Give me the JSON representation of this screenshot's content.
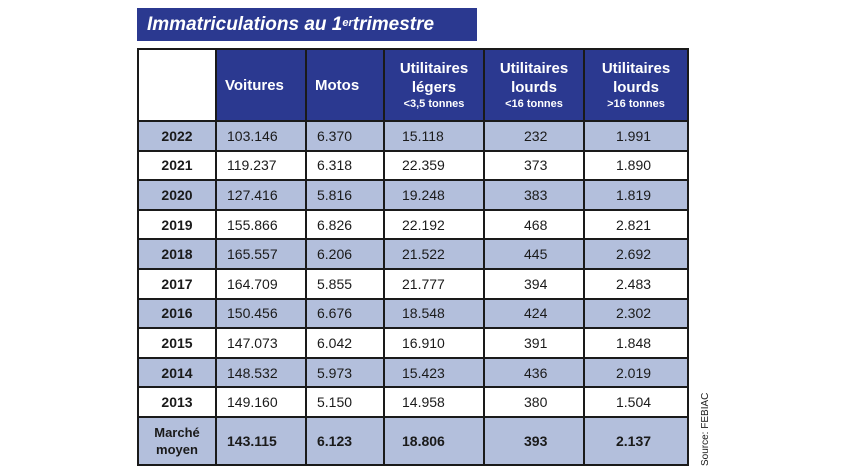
{
  "title": {
    "main": "Immatriculations au 1",
    "sup": "er",
    "rest": " trimestre"
  },
  "headers": {
    "voitures": "Voitures",
    "motos": "Motos",
    "ul_legers": {
      "line1": "Utilitaires",
      "line2": "légers",
      "sub": "<3,5 tonnes"
    },
    "ul_lourds_16": {
      "line1": "Utilitaires",
      "line2": "lourds",
      "sub": "<16 tonnes"
    },
    "ul_lourds_16plus": {
      "line1": "Utilitaires",
      "line2": "lourds",
      "sub": ">16 tonnes"
    }
  },
  "rows": [
    {
      "year": "2022",
      "voitures": "103.146",
      "motos": "6.370",
      "ul_legers": "15.118",
      "ul_lourds_16": "232",
      "ul_lourds_16plus": "1.991"
    },
    {
      "year": "2021",
      "voitures": "119.237",
      "motos": "6.318",
      "ul_legers": "22.359",
      "ul_lourds_16": "373",
      "ul_lourds_16plus": "1.890"
    },
    {
      "year": "2020",
      "voitures": "127.416",
      "motos": "5.816",
      "ul_legers": "19.248",
      "ul_lourds_16": "383",
      "ul_lourds_16plus": "1.819"
    },
    {
      "year": "2019",
      "voitures": "155.866",
      "motos": "6.826",
      "ul_legers": "22.192",
      "ul_lourds_16": "468",
      "ul_lourds_16plus": "2.821"
    },
    {
      "year": "2018",
      "voitures": "165.557",
      "motos": "6.206",
      "ul_legers": "21.522",
      "ul_lourds_16": "445",
      "ul_lourds_16plus": "2.692"
    },
    {
      "year": "2017",
      "voitures": "164.709",
      "motos": "5.855",
      "ul_legers": "21.777",
      "ul_lourds_16": "394",
      "ul_lourds_16plus": "2.483"
    },
    {
      "year": "2016",
      "voitures": "150.456",
      "motos": "6.676",
      "ul_legers": "18.548",
      "ul_lourds_16": "424",
      "ul_lourds_16plus": "2.302"
    },
    {
      "year": "2015",
      "voitures": "147.073",
      "motos": "6.042",
      "ul_legers": "16.910",
      "ul_lourds_16": "391",
      "ul_lourds_16plus": "1.848"
    },
    {
      "year": "2014",
      "voitures": "148.532",
      "motos": "5.973",
      "ul_legers": "15.423",
      "ul_lourds_16": "436",
      "ul_lourds_16plus": "2.019"
    },
    {
      "year": "2013",
      "voitures": "149.160",
      "motos": "5.150",
      "ul_legers": "14.958",
      "ul_lourds_16": "380",
      "ul_lourds_16plus": "1.504"
    }
  ],
  "average": {
    "label_line1": "Marché",
    "label_line2": "moyen",
    "voitures": "143.115",
    "motos": "6.123",
    "ul_legers": "18.806",
    "ul_lourds_16": "393",
    "ul_lourds_16plus": "2.137"
  },
  "source": "Source: FEBIAC",
  "colors": {
    "header": "#2b3990",
    "shade": "#b3bfdc",
    "border": "#1a1a1a"
  },
  "chart_data": {
    "type": "table",
    "title": "Immatriculations au 1er trimestre",
    "columns": [
      "",
      "Voitures",
      "Motos",
      "Utilitaires légers <3,5 tonnes",
      "Utilitaires lourds <16 tonnes",
      "Utilitaires lourds >16 tonnes"
    ],
    "series": [
      {
        "name": "Voitures",
        "values": [
          103146,
          119237,
          127416,
          155866,
          165557,
          164709,
          150456,
          147073,
          148532,
          149160
        ]
      },
      {
        "name": "Motos",
        "values": [
          6370,
          6318,
          5816,
          6826,
          6206,
          5855,
          6676,
          6042,
          5973,
          5150
        ]
      },
      {
        "name": "Utilitaires légers <3,5 tonnes",
        "values": [
          15118,
          22359,
          19248,
          22192,
          21522,
          21777,
          18548,
          16910,
          15423,
          14958
        ]
      },
      {
        "name": "Utilitaires lourds <16 tonnes",
        "values": [
          232,
          373,
          383,
          468,
          445,
          394,
          424,
          391,
          436,
          380
        ]
      },
      {
        "name": "Utilitaires lourds >16 tonnes",
        "values": [
          1991,
          1890,
          1819,
          2821,
          2692,
          2483,
          2302,
          1848,
          2019,
          1504
        ]
      }
    ],
    "categories": [
      "2022",
      "2021",
      "2020",
      "2019",
      "2018",
      "2017",
      "2016",
      "2015",
      "2014",
      "2013"
    ],
    "average_row": {
      "Voitures": 143115,
      "Motos": 6123,
      "Utilitaires légers <3,5 tonnes": 18806,
      "Utilitaires lourds <16 tonnes": 393,
      "Utilitaires lourds >16 tonnes": 2137
    }
  }
}
